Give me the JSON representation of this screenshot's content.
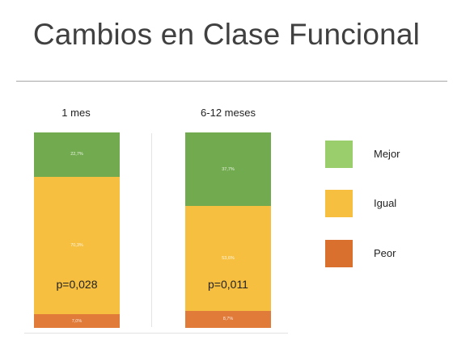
{
  "slide": {
    "title": "Cambios en Clase Funcional"
  },
  "chart_data": {
    "type": "bar",
    "stacked": true,
    "percent": true,
    "title": "",
    "categories": [
      "1 mes",
      "6-12 meses"
    ],
    "series": [
      {
        "name": "Peor",
        "color": "#e07b39",
        "values": [
          7.0,
          8.7
        ],
        "labels": [
          "7,0%",
          "8,7%"
        ]
      },
      {
        "name": "Igual",
        "color": "#f6bf3f",
        "values": [
          70.3,
          53.6
        ],
        "labels": [
          "70,3%",
          "53,6%"
        ]
      },
      {
        "name": "Mejor",
        "color": "#72ab4f",
        "values": [
          22.7,
          37.7
        ],
        "labels": [
          "22,7%",
          "37,7%"
        ]
      }
    ],
    "annotations": [
      "p=0,028",
      "p=0,011"
    ],
    "ylim": [
      0,
      100
    ],
    "grid": false,
    "legend_position": "right"
  },
  "legend": [
    {
      "label": "Mejor",
      "color": "#9acd6b"
    },
    {
      "label": "Igual",
      "color": "#f6bf3f"
    },
    {
      "label": "Peor",
      "color": "#d9702e"
    }
  ]
}
